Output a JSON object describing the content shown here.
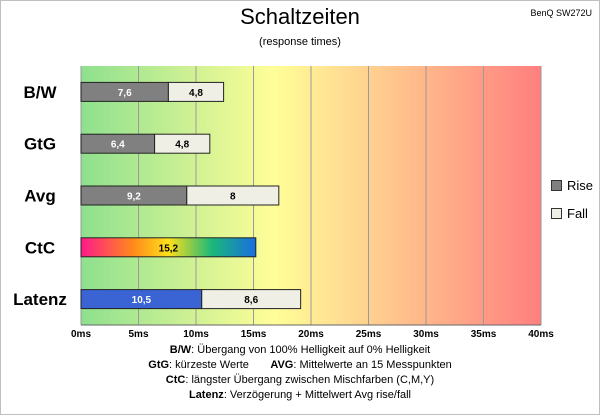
{
  "model": "BenQ SW272U",
  "colors": {
    "rise": "#808080",
    "fall": "#f0efe6",
    "latency": "#3a63d4",
    "gradient_left": "#8ee08e",
    "gradient_mid": "#fffe98",
    "gradient_right": "#ff7f7f"
  },
  "chart_data": {
    "type": "bar",
    "orientation": "horizontal",
    "stacked": true,
    "title": "Schaltzeiten",
    "subtitle": "(response times)",
    "categories": [
      "B/W",
      "GtG",
      "Avg",
      "CtC",
      "Latenz"
    ],
    "series": [
      {
        "name": "Rise",
        "values": [
          7.6,
          6.4,
          9.2,
          15.2,
          10.5
        ]
      },
      {
        "name": "Fall",
        "values": [
          4.8,
          4.8,
          8,
          null,
          8.6
        ]
      }
    ],
    "xlim": [
      0,
      40
    ],
    "xticks": [
      "0ms",
      "5ms",
      "10ms",
      "15ms",
      "20ms",
      "25ms",
      "30ms",
      "35ms",
      "40ms"
    ],
    "grid": true,
    "legend": "right"
  },
  "notes": [
    {
      "label": "B/W",
      "text": ":  Übergang von 100% Helligkeit auf 0% Helligkeit"
    },
    {
      "label": "GtG",
      "text": ": kürzeste  Werte",
      "label2": "AVG",
      "text2": ": Mittelwerte  an 15 Messpunkten"
    },
    {
      "label": "CtC",
      "text": ": längster Übergang  zwischen Mischfarben  (C,M,Y)"
    },
    {
      "label": "Latenz",
      "text": ": Verzögerung  + Mittelwert  Avg rise/fall"
    }
  ]
}
